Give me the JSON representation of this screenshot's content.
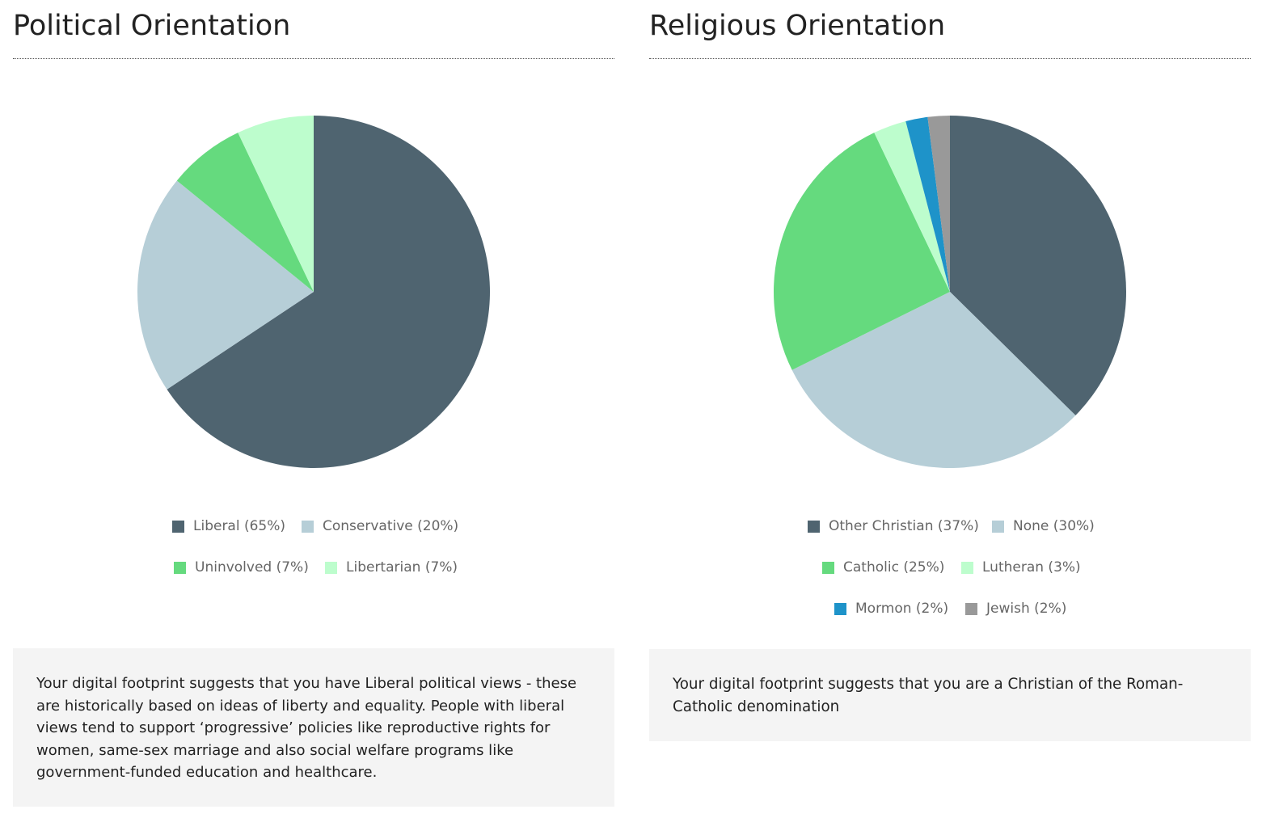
{
  "chart_data": [
    {
      "type": "pie",
      "title": "Political Orientation",
      "categories": [
        "Liberal (65%)",
        "Conservative (20%)",
        "Uninvolved (7%)",
        "Libertarian (7%)"
      ],
      "values": [
        65,
        20,
        7,
        7
      ],
      "colors": [
        "#4f6470",
        "#b6ced7",
        "#65da7e",
        "#bdfdcd"
      ],
      "start_angle": "12 o'clock",
      "direction": "clockwise",
      "legend_position": "bottom"
    },
    {
      "type": "pie",
      "title": "Religious Orientation",
      "categories": [
        "Other Christian (37%)",
        "None (30%)",
        "Catholic (25%)",
        "Lutheran (3%)",
        "Mormon (2%)",
        "Jewish (2%)"
      ],
      "values": [
        37,
        30,
        25,
        3,
        2,
        2
      ],
      "colors": [
        "#4f6470",
        "#b6ced7",
        "#65da7e",
        "#bdfdcd",
        "#1e93c9",
        "#999999"
      ],
      "start_angle": "12 o'clock",
      "direction": "clockwise",
      "legend_position": "bottom"
    }
  ],
  "political": {
    "summary": "Your digital footprint suggests that you have Liberal political views - these are historically based on ideas of liberty and equality. People with liberal views tend to support ‘progressive’ policies like reproductive rights for women, same-sex marriage and also social welfare programs like government-funded education and healthcare."
  },
  "religious": {
    "summary": "Your digital footprint suggests that you are a Christian of the Roman-Catholic denomination"
  }
}
